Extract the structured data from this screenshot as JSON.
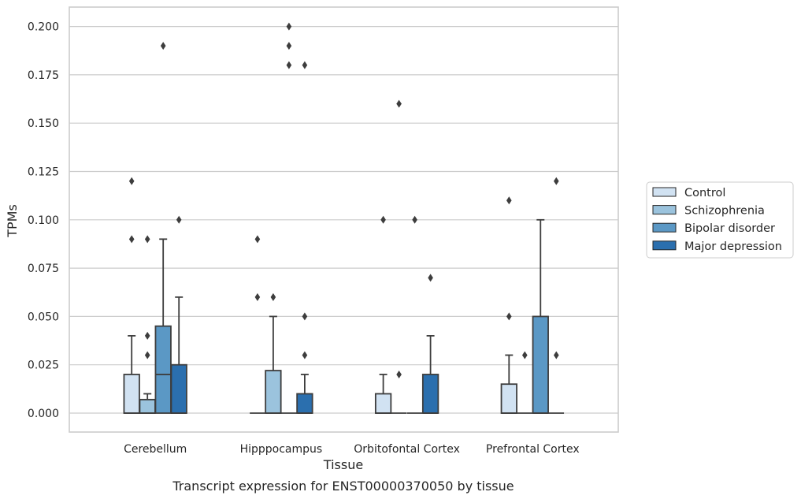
{
  "chart_data": {
    "type": "box",
    "title": "",
    "caption": "Transcript expression for ENST00000370050 by tissue",
    "xlabel": "Tissue",
    "ylabel": "TPMs",
    "ylim": [
      -0.02,
      0.21
    ],
    "yticks": [
      "0.000",
      "0.025",
      "0.050",
      "0.075",
      "0.100",
      "0.125",
      "0.150",
      "0.175",
      "0.200"
    ],
    "ytick_values": [
      0,
      0.025,
      0.05,
      0.075,
      0.1,
      0.125,
      0.15,
      0.175,
      0.2
    ],
    "grid": true,
    "legend_position": "right",
    "categories": [
      "Cerebellum",
      "Hipppocampus",
      "Orbitofontal Cortex",
      "Prefrontal Cortex"
    ],
    "series": [
      {
        "name": "Control",
        "color": "#d1e2f2",
        "boxes": [
          {
            "q1": 0,
            "median": 0,
            "q3": 0.02,
            "whisker_low": 0,
            "whisker_high": 0.04,
            "outliers": [
              0.09,
              0.12
            ]
          },
          {
            "q1": 0,
            "median": 0,
            "q3": 0,
            "whisker_low": 0,
            "whisker_high": 0,
            "outliers": [
              0.06,
              0.09
            ]
          },
          {
            "q1": 0,
            "median": 0,
            "q3": 0.01,
            "whisker_low": 0,
            "whisker_high": 0.02,
            "outliers": [
              0.1
            ]
          },
          {
            "q1": 0,
            "median": 0,
            "q3": 0.015,
            "whisker_low": 0,
            "whisker_high": 0.03,
            "outliers": [
              0.05,
              0.11
            ]
          }
        ]
      },
      {
        "name": "Schizophrenia",
        "color": "#9bc3dd",
        "boxes": [
          {
            "q1": 0,
            "median": 0,
            "q3": 0.007,
            "whisker_low": 0,
            "whisker_high": 0.01,
            "outliers": [
              0.03,
              0.04,
              0.09
            ]
          },
          {
            "q1": 0,
            "median": 0,
            "q3": 0.022,
            "whisker_low": 0,
            "whisker_high": 0.05,
            "outliers": [
              0.06
            ]
          },
          {
            "q1": 0,
            "median": 0,
            "q3": 0,
            "whisker_low": 0,
            "whisker_high": 0,
            "outliers": [
              0.02,
              0.16
            ]
          },
          {
            "q1": 0,
            "median": 0,
            "q3": 0,
            "whisker_low": 0,
            "whisker_high": 0,
            "outliers": [
              0.03
            ]
          }
        ]
      },
      {
        "name": "Bipolar disorder",
        "color": "#5b98c5",
        "boxes": [
          {
            "q1": 0,
            "median": 0.02,
            "q3": 0.045,
            "whisker_low": 0,
            "whisker_high": 0.09,
            "outliers": [
              0.19
            ]
          },
          {
            "q1": 0,
            "median": 0,
            "q3": 0,
            "whisker_low": 0,
            "whisker_high": 0,
            "outliers": [
              0.18,
              0.19,
              0.2
            ]
          },
          {
            "q1": 0,
            "median": 0,
            "q3": 0,
            "whisker_low": 0,
            "whisker_high": 0,
            "outliers": [
              0.1
            ]
          },
          {
            "q1": 0,
            "median": 0,
            "q3": 0.05,
            "whisker_low": 0,
            "whisker_high": 0.1,
            "outliers": []
          }
        ]
      },
      {
        "name": "Major depression",
        "color": "#2b6fae",
        "boxes": [
          {
            "q1": 0,
            "median": 0,
            "q3": 0.025,
            "whisker_low": 0,
            "whisker_high": 0.06,
            "outliers": [
              0.1
            ]
          },
          {
            "q1": 0,
            "median": 0,
            "q3": 0.01,
            "whisker_low": 0,
            "whisker_high": 0.02,
            "outliers": [
              0.03,
              0.05,
              0.18
            ]
          },
          {
            "q1": 0,
            "median": 0,
            "q3": 0.02,
            "whisker_low": 0,
            "whisker_high": 0.04,
            "outliers": [
              0.07
            ]
          },
          {
            "q1": 0,
            "median": 0,
            "q3": 0,
            "whisker_low": 0,
            "whisker_high": 0,
            "outliers": [
              0.03,
              0.12
            ]
          }
        ]
      }
    ]
  }
}
